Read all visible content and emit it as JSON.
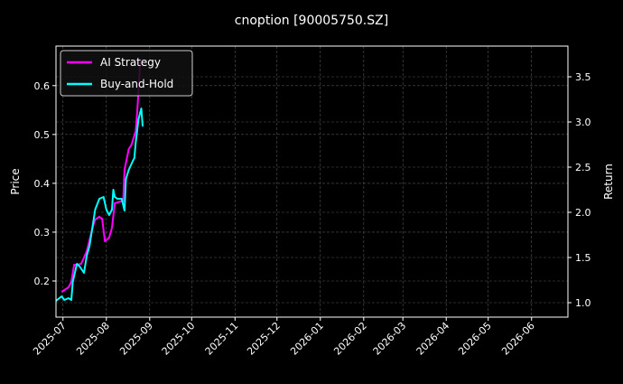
{
  "chart_data": {
    "type": "line",
    "title": "cnoption [90005750.SZ]",
    "ylabel": "Price",
    "y2label": "Return",
    "xlim": [
      "2025-06-26",
      "2026-06-27"
    ],
    "ylim": [
      0.126,
      0.681
    ],
    "y2lim": [
      0.84,
      3.84
    ],
    "xticks": [
      "2025-07",
      "2025-08",
      "2025-09",
      "2025-10",
      "2025-11",
      "2025-12",
      "2026-01",
      "2026-02",
      "2026-03",
      "2026-04",
      "2026-05",
      "2026-06"
    ],
    "yticks": [
      "0.2",
      "0.3",
      "0.4",
      "0.5",
      "0.6"
    ],
    "y2ticks": [
      "1.0",
      "1.5",
      "2.0",
      "2.5",
      "3.0",
      "3.5"
    ],
    "grid": true,
    "legend_placement": "top-left",
    "background": "#000000",
    "series": [
      {
        "name": "AI Strategy",
        "axis": "right",
        "color": "#ff00ff",
        "x": [
          "2025-06-30",
          "2025-07-05",
          "2025-07-07",
          "2025-07-09",
          "2025-07-11",
          "2025-07-14",
          "2025-07-18",
          "2025-07-22",
          "2025-07-24",
          "2025-07-27",
          "2025-07-29",
          "2025-07-31",
          "2025-08-03",
          "2025-08-05",
          "2025-08-07",
          "2025-08-11",
          "2025-08-13",
          "2025-08-14",
          "2025-08-17",
          "2025-08-19",
          "2025-08-22",
          "2025-08-23",
          "2025-08-25",
          "2025-08-26"
        ],
        "y": [
          1.12,
          1.17,
          1.23,
          1.42,
          1.42,
          1.43,
          1.57,
          1.82,
          1.92,
          1.95,
          1.93,
          1.68,
          1.72,
          1.83,
          2.1,
          2.12,
          2.12,
          2.47,
          2.7,
          2.75,
          2.9,
          3.1,
          3.6,
          3.7
        ]
      },
      {
        "name": "Buy-and-Hold",
        "axis": "right",
        "color": "#00ffff",
        "x": [
          "2025-06-26",
          "2025-06-30",
          "2025-07-02",
          "2025-07-05",
          "2025-07-07",
          "2025-07-08",
          "2025-07-11",
          "2025-07-13",
          "2025-07-16",
          "2025-07-18",
          "2025-07-20",
          "2025-07-22",
          "2025-07-24",
          "2025-07-27",
          "2025-07-30",
          "2025-08-01",
          "2025-08-03",
          "2025-08-05",
          "2025-08-06",
          "2025-08-07",
          "2025-08-09",
          "2025-08-12",
          "2025-08-14",
          "2025-08-15",
          "2025-08-17",
          "2025-08-20",
          "2025-08-21",
          "2025-08-22",
          "2025-08-24",
          "2025-08-26",
          "2025-08-27"
        ],
        "y": [
          1.02,
          1.07,
          1.03,
          1.05,
          1.03,
          1.23,
          1.43,
          1.4,
          1.33,
          1.52,
          1.63,
          1.83,
          2.03,
          2.15,
          2.17,
          2.03,
          1.97,
          2.03,
          2.25,
          2.17,
          2.15,
          2.15,
          2.02,
          2.37,
          2.47,
          2.57,
          2.6,
          2.77,
          3.03,
          3.15,
          2.95
        ]
      }
    ]
  }
}
